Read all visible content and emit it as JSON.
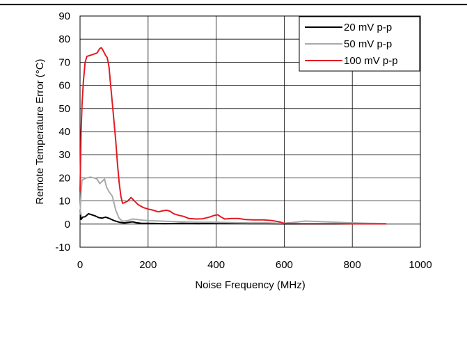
{
  "chart_data": {
    "type": "line",
    "title": "",
    "xlabel": "Noise Frequency (MHz)",
    "ylabel": "Remote Temperature Error (°C)",
    "xlim": [
      0,
      1000
    ],
    "ylim": [
      -10,
      90
    ],
    "xticks": [
      0,
      200,
      400,
      600,
      800,
      1000
    ],
    "yticks": [
      -10,
      0,
      10,
      20,
      30,
      40,
      50,
      60,
      70,
      80,
      90
    ],
    "grid": true,
    "legend_position": "top-right",
    "series": [
      {
        "name": "20 mV p-p",
        "color": "#000000",
        "points": [
          [
            0,
            6
          ],
          [
            3,
            2
          ],
          [
            8,
            3
          ],
          [
            15,
            3.2
          ],
          [
            25,
            4.5
          ],
          [
            35,
            4
          ],
          [
            45,
            3.5
          ],
          [
            55,
            2.8
          ],
          [
            65,
            2.6
          ],
          [
            75,
            3
          ],
          [
            85,
            2.5
          ],
          [
            100,
            1.5
          ],
          [
            115,
            0.8
          ],
          [
            130,
            0.5
          ],
          [
            145,
            0.8
          ],
          [
            155,
            1.0
          ],
          [
            165,
            0.6
          ],
          [
            180,
            0.3
          ],
          [
            200,
            0.3
          ],
          [
            250,
            0.2
          ],
          [
            300,
            0.3
          ],
          [
            350,
            0.2
          ],
          [
            400,
            0.5
          ],
          [
            450,
            0.3
          ],
          [
            500,
            0.2
          ],
          [
            550,
            0.2
          ],
          [
            600,
            0.1
          ],
          [
            700,
            0.1
          ],
          [
            800,
            0.1
          ],
          [
            900,
            0.1
          ]
        ]
      },
      {
        "name": "50 mV p-p",
        "color": "#aaaaaa",
        "points": [
          [
            0,
            4
          ],
          [
            3,
            14
          ],
          [
            6,
            19
          ],
          [
            12,
            19.5
          ],
          [
            20,
            20
          ],
          [
            30,
            20.3
          ],
          [
            40,
            20
          ],
          [
            50,
            19.5
          ],
          [
            58,
            17.5
          ],
          [
            65,
            18.5
          ],
          [
            72,
            19.5
          ],
          [
            78,
            16
          ],
          [
            85,
            14
          ],
          [
            95,
            12
          ],
          [
            105,
            6
          ],
          [
            115,
            2.5
          ],
          [
            125,
            1.2
          ],
          [
            140,
            1.5
          ],
          [
            155,
            2.2
          ],
          [
            170,
            2.0
          ],
          [
            185,
            1.7
          ],
          [
            200,
            1.5
          ],
          [
            250,
            1.2
          ],
          [
            300,
            1.0
          ],
          [
            350,
            0.8
          ],
          [
            400,
            0.8
          ],
          [
            450,
            0.6
          ],
          [
            500,
            0.5
          ],
          [
            550,
            0.5
          ],
          [
            600,
            0.3
          ],
          [
            620,
            0.6
          ],
          [
            660,
            1.3
          ],
          [
            700,
            1.1
          ],
          [
            750,
            0.8
          ],
          [
            800,
            0.5
          ],
          [
            850,
            0.3
          ],
          [
            900,
            0.2
          ]
        ]
      },
      {
        "name": "100 mV p-p",
        "color": "#e31b23",
        "points": [
          [
            0,
            14
          ],
          [
            3,
            40
          ],
          [
            6,
            52
          ],
          [
            10,
            62
          ],
          [
            15,
            70
          ],
          [
            20,
            72.5
          ],
          [
            30,
            73
          ],
          [
            40,
            73.5
          ],
          [
            50,
            74
          ],
          [
            58,
            76
          ],
          [
            63,
            76.3
          ],
          [
            68,
            75
          ],
          [
            75,
            73
          ],
          [
            80,
            72
          ],
          [
            85,
            68
          ],
          [
            90,
            60
          ],
          [
            95,
            52
          ],
          [
            100,
            44
          ],
          [
            105,
            36
          ],
          [
            110,
            26
          ],
          [
            115,
            18
          ],
          [
            120,
            12
          ],
          [
            125,
            9
          ],
          [
            130,
            9.2
          ],
          [
            140,
            10
          ],
          [
            150,
            11.5
          ],
          [
            160,
            10
          ],
          [
            170,
            8.5
          ],
          [
            185,
            7.2
          ],
          [
            200,
            6.5
          ],
          [
            215,
            6.0
          ],
          [
            230,
            5.3
          ],
          [
            245,
            5.8
          ],
          [
            255,
            6.0
          ],
          [
            265,
            5.5
          ],
          [
            275,
            4.5
          ],
          [
            290,
            3.8
          ],
          [
            305,
            3.3
          ],
          [
            320,
            2.4
          ],
          [
            340,
            2.2
          ],
          [
            360,
            2.3
          ],
          [
            380,
            3.0
          ],
          [
            395,
            3.8
          ],
          [
            405,
            4.0
          ],
          [
            415,
            3.0
          ],
          [
            425,
            2.2
          ],
          [
            445,
            2.4
          ],
          [
            465,
            2.4
          ],
          [
            485,
            2.0
          ],
          [
            510,
            1.8
          ],
          [
            540,
            1.8
          ],
          [
            565,
            1.5
          ],
          [
            585,
            1.0
          ],
          [
            600,
            0.3
          ],
          [
            650,
            0.2
          ],
          [
            700,
            0.2
          ],
          [
            750,
            0.2
          ],
          [
            800,
            0.1
          ],
          [
            850,
            0.1
          ],
          [
            900,
            0.1
          ]
        ]
      }
    ]
  }
}
